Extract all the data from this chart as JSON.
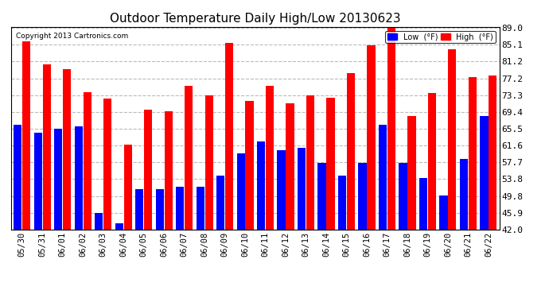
{
  "title": "Outdoor Temperature Daily High/Low 20130623",
  "copyright": "Copyright 2013 Cartronics.com",
  "categories": [
    "05/30",
    "05/31",
    "06/01",
    "06/02",
    "06/03",
    "06/04",
    "06/05",
    "06/06",
    "06/07",
    "06/08",
    "06/09",
    "06/10",
    "06/11",
    "06/12",
    "06/13",
    "06/14",
    "06/15",
    "06/16",
    "06/17",
    "06/18",
    "06/19",
    "06/20",
    "06/21",
    "06/22"
  ],
  "high": [
    86.0,
    80.5,
    79.5,
    74.0,
    72.5,
    61.8,
    70.0,
    69.5,
    75.5,
    73.3,
    85.5,
    72.0,
    75.5,
    71.5,
    73.3,
    72.8,
    78.5,
    85.0,
    89.0,
    68.5,
    73.8,
    84.0,
    77.5,
    78.0
  ],
  "low": [
    66.5,
    64.5,
    65.5,
    66.0,
    45.9,
    43.5,
    51.5,
    51.5,
    52.0,
    52.0,
    54.5,
    59.8,
    62.5,
    60.5,
    61.0,
    57.5,
    54.5,
    57.5,
    66.5,
    57.5,
    54.0,
    50.0,
    58.5,
    68.5
  ],
  "high_color": "#ff0000",
  "low_color": "#0000ff",
  "bg_color": "#ffffff",
  "plot_bg_color": "#ffffff",
  "yticks": [
    42.0,
    45.9,
    49.8,
    53.8,
    57.7,
    61.6,
    65.5,
    69.4,
    73.3,
    77.2,
    81.2,
    85.1,
    89.0
  ],
  "ymin": 42.0,
  "ymax": 89.0,
  "legend_low_label": "Low  (°F)",
  "legend_high_label": "High  (°F)"
}
